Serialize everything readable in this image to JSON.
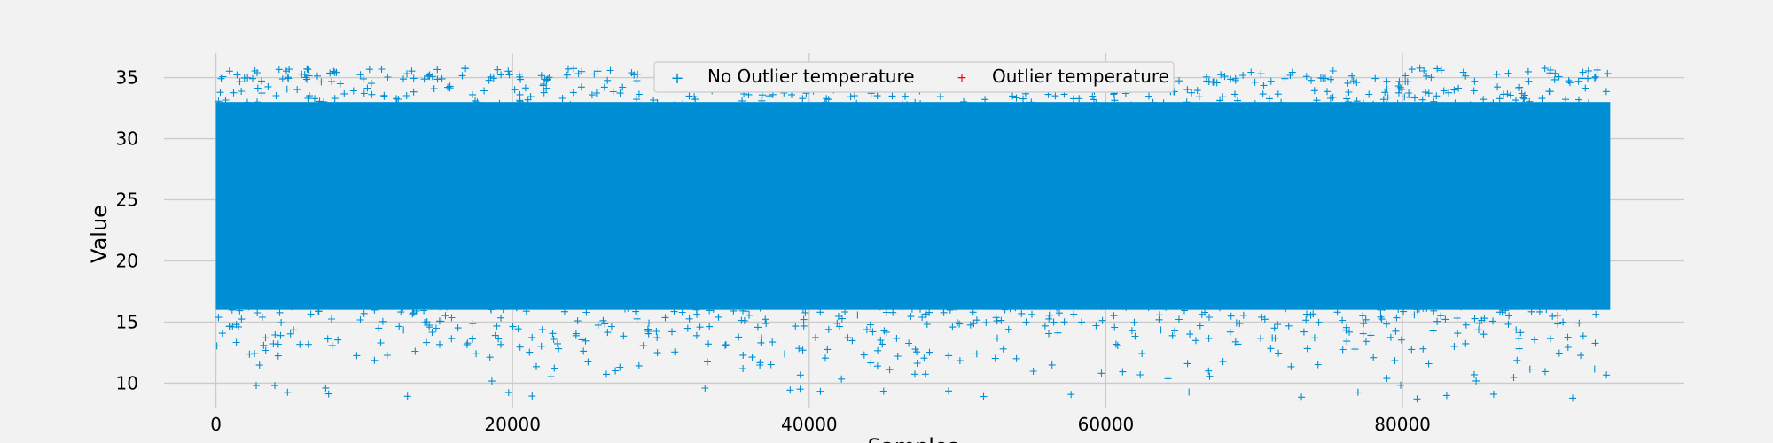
{
  "chart_data": {
    "type": "scatter",
    "xlabel": "Samples",
    "ylabel": "Value",
    "xlim": [
      -3500,
      99000
    ],
    "ylim": [
      8.0,
      37.0
    ],
    "x_ticks": [
      0,
      20000,
      40000,
      60000,
      80000
    ],
    "y_ticks": [
      10,
      15,
      20,
      25,
      30,
      35
    ],
    "grid": true,
    "legend": {
      "placement": "upper-center",
      "columns": 2
    },
    "marker": "+",
    "series": [
      {
        "name": "No Outlier temperature",
        "color": "#008fd5",
        "x_range": [
          0,
          94000
        ],
        "dense_band": [
          16,
          33
        ],
        "sparse_range": [
          8.7,
          35.8
        ],
        "points_approx": 94000
      },
      {
        "name": "Outlier temperature",
        "color": "#ff0000",
        "x_range": [],
        "points_approx": 0
      }
    ]
  }
}
